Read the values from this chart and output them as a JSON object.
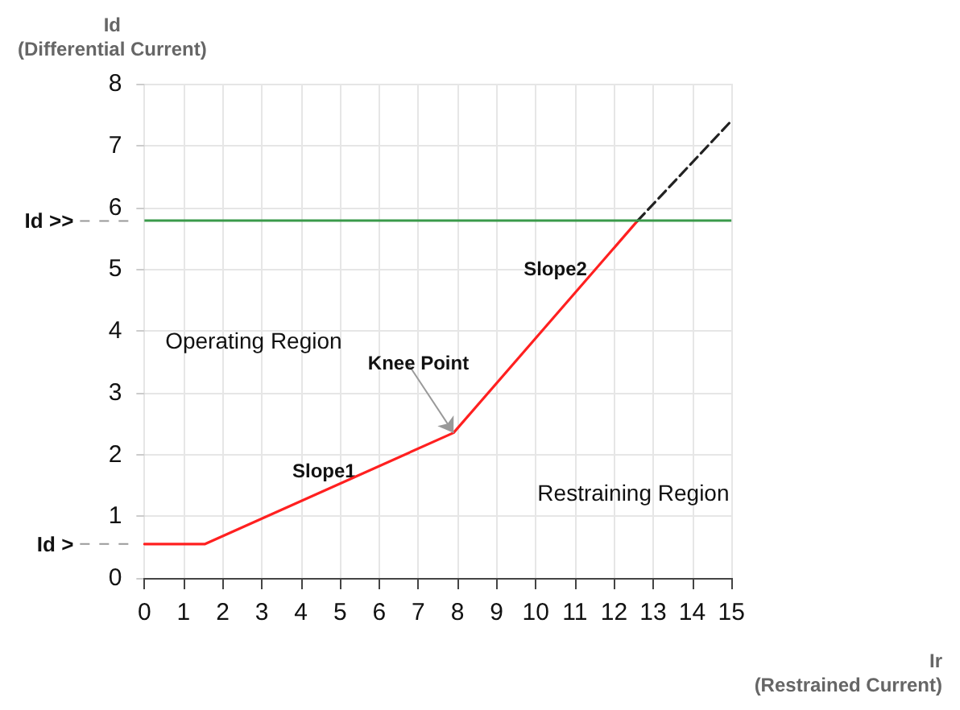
{
  "chart_data": {
    "type": "line",
    "xlabel": "Ir\n(Restrained Current)",
    "ylabel": "Id\n(Differential Current)",
    "xlim": [
      0,
      15
    ],
    "xticks": [
      0,
      1,
      2,
      3,
      4,
      5,
      6,
      7,
      8,
      9,
      10,
      11,
      12,
      13,
      14,
      15
    ],
    "ylim": [
      0,
      8
    ],
    "yticks": [
      0,
      1,
      2,
      3,
      4,
      5,
      6,
      7,
      8
    ],
    "grid": true,
    "marker": "none",
    "series": [
      {
        "color": "#ff2020",
        "x": [
          0,
          1.55,
          7.9,
          12.6
        ],
        "values": [
          0.55,
          0.55,
          2.35,
          5.78
        ],
        "line_style": "solid"
      },
      {
        "color": "#222222",
        "x": [
          12.6,
          15
        ],
        "values": [
          5.78,
          7.4
        ],
        "line_style": "dashed"
      }
    ],
    "ref_lines": [
      {
        "axis": "y",
        "value": 5.78,
        "label": "Id >>",
        "color": "#3a9a4a"
      },
      {
        "axis": "y",
        "value": 0.55,
        "label": "Id >"
      }
    ],
    "annotations": [
      "Operating Region",
      "Restraining Region",
      "Slope1",
      "Slope2",
      {
        "text": "Knee Point",
        "x": 7.9,
        "y": 2.35
      }
    ]
  }
}
